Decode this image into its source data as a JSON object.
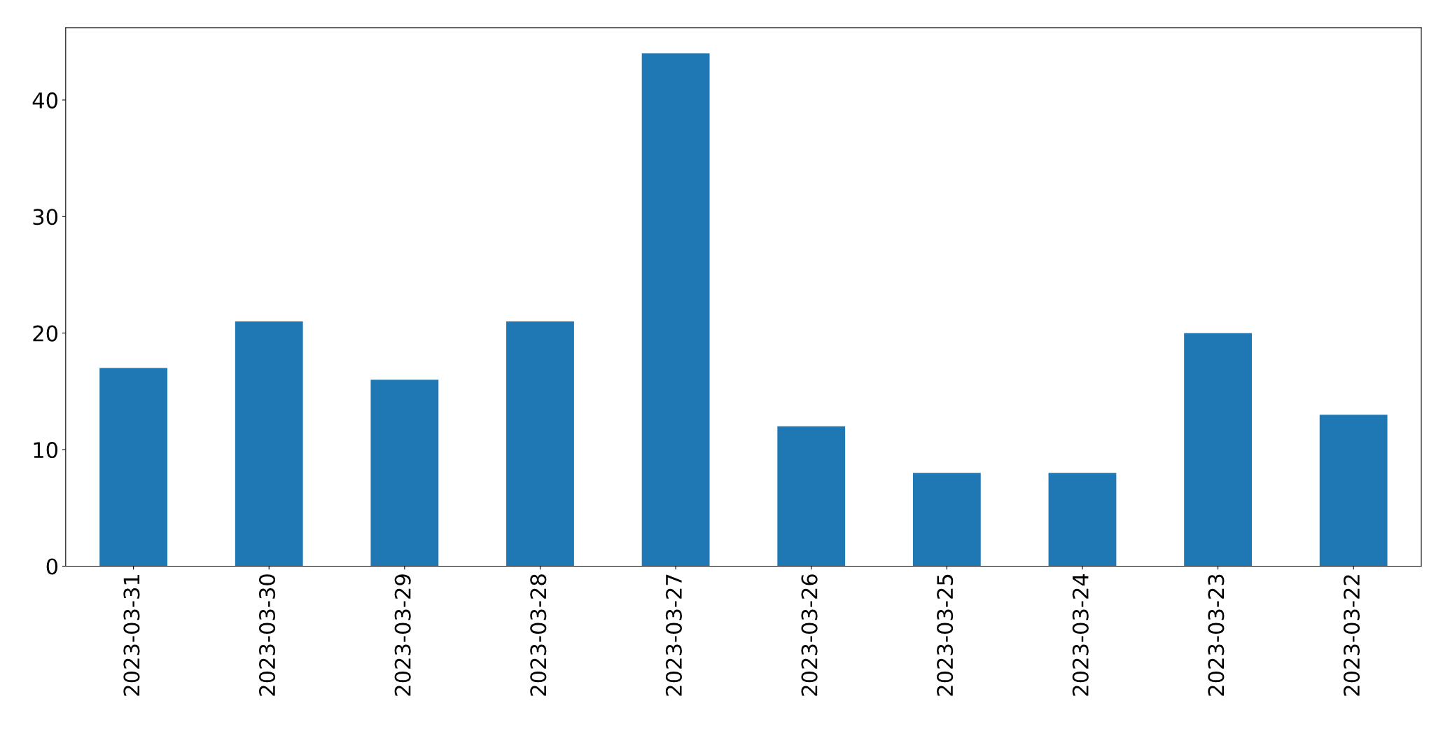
{
  "chart_data": {
    "type": "bar",
    "categories": [
      "2023-03-31",
      "2023-03-30",
      "2023-03-29",
      "2023-03-28",
      "2023-03-27",
      "2023-03-26",
      "2023-03-25",
      "2023-03-24",
      "2023-03-23",
      "2023-03-22"
    ],
    "values": [
      17,
      21,
      16,
      21,
      44,
      12,
      8,
      8,
      20,
      13
    ],
    "color": "#1f77b4",
    "ylim": [
      0,
      46.2
    ],
    "yticks": [
      0,
      10,
      20,
      30,
      40
    ],
    "grid": false,
    "legend": false
  }
}
